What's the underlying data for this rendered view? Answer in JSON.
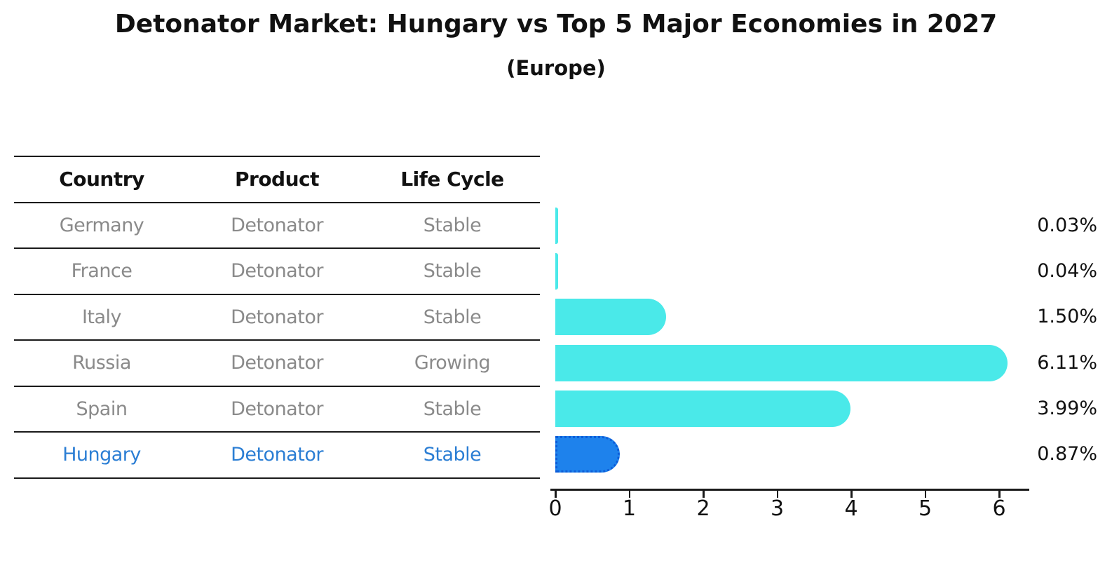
{
  "title": "Detonator Market: Hungary vs Top 5 Major Economies in 2027",
  "subtitle": "(Europe)",
  "colors": {
    "bar_cyan": "#4AE9E9",
    "bar_highlight_fill": "#1E82EC",
    "bar_highlight_border": "#0C5CD8",
    "table_text_gray": "#8a8a8a",
    "table_text_highlight": "#2b7ed4",
    "line_black": "#1a1a1a"
  },
  "table": {
    "headers": [
      "Country",
      "Product",
      "Life Cycle"
    ],
    "rows": [
      {
        "country": "Germany",
        "product": "Detonator",
        "life_cycle": "Stable",
        "highlighted": false
      },
      {
        "country": "France",
        "product": "Detonator",
        "life_cycle": "Stable",
        "highlighted": false
      },
      {
        "country": "Italy",
        "product": "Detonator",
        "life_cycle": "Stable",
        "highlighted": false
      },
      {
        "country": "Russia",
        "product": "Detonator",
        "life_cycle": "Growing",
        "highlighted": false
      },
      {
        "country": "Spain",
        "product": "Detonator",
        "life_cycle": "Stable",
        "highlighted": false
      },
      {
        "country": "Hungary",
        "product": "Detonator",
        "life_cycle": "Stable",
        "highlighted": true
      }
    ]
  },
  "chart_data": {
    "type": "bar",
    "orientation": "horizontal",
    "categories": [
      "Germany",
      "France",
      "Italy",
      "Russia",
      "Spain",
      "Hungary"
    ],
    "values": [
      0.03,
      0.04,
      1.5,
      6.11,
      3.99,
      0.87
    ],
    "value_labels": [
      "0.03%",
      "0.04%",
      "1.50%",
      "6.11%",
      "3.99%",
      "0.87%"
    ],
    "highlight_index": 5,
    "x_ticks": [
      0,
      1,
      2,
      3,
      4,
      5,
      6
    ],
    "xlim": [
      0,
      6.4
    ],
    "grid": false,
    "legend": "none",
    "title": "Detonator Market: Hungary vs Top 5 Major Economies in 2027 (Europe)",
    "xlabel": "",
    "ylabel": ""
  }
}
